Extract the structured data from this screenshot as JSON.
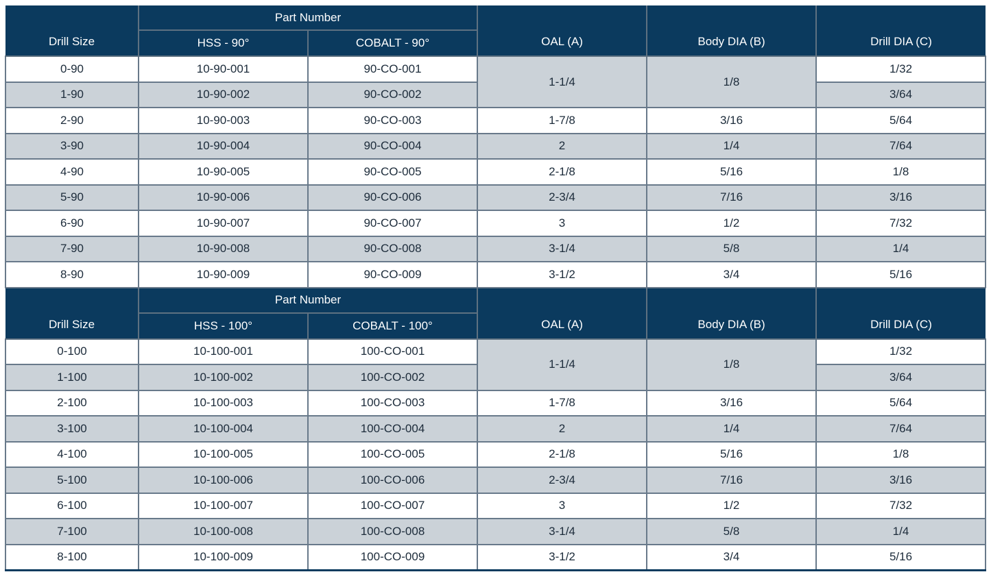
{
  "colors": {
    "header_bg": "#0b3a5e",
    "header_text": "#ffffff",
    "row_bg": "#ffffff",
    "row_alt_bg": "#cbd2d8",
    "grid_border": "#68798a",
    "data_text": "#1c2b3a"
  },
  "tables": [
    {
      "header": {
        "drill_size": "Drill Size",
        "part_number": "Part Number",
        "hss": "HSS - 90°",
        "cobalt": "COBALT - 90°",
        "oal": "OAL (A)",
        "body_dia": "Body DIA (B)",
        "drill_dia": "Drill DIA (C)"
      },
      "merged": {
        "oal": "1-1/4",
        "body_dia": "1/8"
      },
      "rows": [
        {
          "drill_size": "0-90",
          "hss": "10-90-001",
          "cobalt": "90-CO-001",
          "drill_dia": "1/32"
        },
        {
          "drill_size": "1-90",
          "hss": "10-90-002",
          "cobalt": "90-CO-002",
          "drill_dia": "3/64"
        },
        {
          "drill_size": "2-90",
          "hss": "10-90-003",
          "cobalt": "90-CO-003",
          "oal": "1-7/8",
          "body_dia": "3/16",
          "drill_dia": "5/64"
        },
        {
          "drill_size": "3-90",
          "hss": "10-90-004",
          "cobalt": "90-CO-004",
          "oal": "2",
          "body_dia": "1/4",
          "drill_dia": "7/64"
        },
        {
          "drill_size": "4-90",
          "hss": "10-90-005",
          "cobalt": "90-CO-005",
          "oal": "2-1/8",
          "body_dia": "5/16",
          "drill_dia": "1/8"
        },
        {
          "drill_size": "5-90",
          "hss": "10-90-006",
          "cobalt": "90-CO-006",
          "oal": "2-3/4",
          "body_dia": "7/16",
          "drill_dia": "3/16"
        },
        {
          "drill_size": "6-90",
          "hss": "10-90-007",
          "cobalt": "90-CO-007",
          "oal": "3",
          "body_dia": "1/2",
          "drill_dia": "7/32"
        },
        {
          "drill_size": "7-90",
          "hss": "10-90-008",
          "cobalt": "90-CO-008",
          "oal": "3-1/4",
          "body_dia": "5/8",
          "drill_dia": "1/4"
        },
        {
          "drill_size": "8-90",
          "hss": "10-90-009",
          "cobalt": "90-CO-009",
          "oal": "3-1/2",
          "body_dia": "3/4",
          "drill_dia": "5/16"
        }
      ]
    },
    {
      "header": {
        "drill_size": "Drill Size",
        "part_number": "Part Number",
        "hss": "HSS - 100°",
        "cobalt": "COBALT - 100°",
        "oal": "OAL (A)",
        "body_dia": "Body DIA (B)",
        "drill_dia": "Drill DIA (C)"
      },
      "merged": {
        "oal": "1-1/4",
        "body_dia": "1/8"
      },
      "rows": [
        {
          "drill_size": "0-100",
          "hss": "10-100-001",
          "cobalt": "100-CO-001",
          "drill_dia": "1/32"
        },
        {
          "drill_size": "1-100",
          "hss": "10-100-002",
          "cobalt": "100-CO-002",
          "drill_dia": "3/64"
        },
        {
          "drill_size": "2-100",
          "hss": "10-100-003",
          "cobalt": "100-CO-003",
          "oal": "1-7/8",
          "body_dia": "3/16",
          "drill_dia": "5/64"
        },
        {
          "drill_size": "3-100",
          "hss": "10-100-004",
          "cobalt": "100-CO-004",
          "oal": "2",
          "body_dia": "1/4",
          "drill_dia": "7/64"
        },
        {
          "drill_size": "4-100",
          "hss": "10-100-005",
          "cobalt": "100-CO-005",
          "oal": "2-1/8",
          "body_dia": "5/16",
          "drill_dia": "1/8"
        },
        {
          "drill_size": "5-100",
          "hss": "10-100-006",
          "cobalt": "100-CO-006",
          "oal": "2-3/4",
          "body_dia": "7/16",
          "drill_dia": "3/16"
        },
        {
          "drill_size": "6-100",
          "hss": "10-100-007",
          "cobalt": "100-CO-007",
          "oal": "3",
          "body_dia": "1/2",
          "drill_dia": "7/32"
        },
        {
          "drill_size": "7-100",
          "hss": "10-100-008",
          "cobalt": "100-CO-008",
          "oal": "3-1/4",
          "body_dia": "5/8",
          "drill_dia": "1/4"
        },
        {
          "drill_size": "8-100",
          "hss": "10-100-009",
          "cobalt": "100-CO-009",
          "oal": "3-1/2",
          "body_dia": "3/4",
          "drill_dia": "5/16"
        }
      ]
    }
  ]
}
